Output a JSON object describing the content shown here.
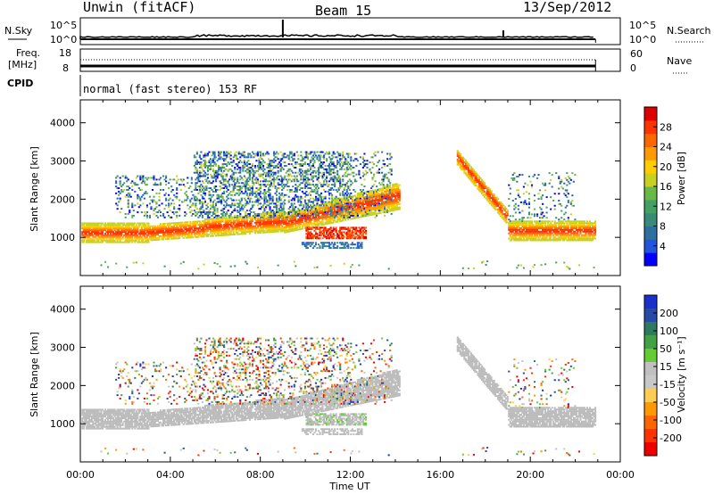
{
  "header": {
    "station": "Unwin (fitACF)",
    "beam": "Beam 15",
    "date": "13/Sep/2012"
  },
  "top_panels": {
    "nsky_label": "N.Sky",
    "nsky_ticks": [
      "10^5",
      "10^0"
    ],
    "nsearch_label": "N.Search",
    "nsearch_ticks": [
      "10^5",
      "10^0"
    ],
    "freq_label": "Freq.",
    "freq_unit": "[MHz]",
    "freq_ticks": [
      "18",
      "8"
    ],
    "nave_label": "Nave",
    "nave_ticks": [
      "60",
      "0"
    ],
    "cpid_label": "CPID",
    "cpid_text": "normal (fast stereo) 153 RF"
  },
  "chart_data": [
    {
      "type": "heatmap",
      "name": "power-panel",
      "xlabel": "Time UT",
      "ylabel": "Slant Range [km]",
      "xlim": [
        0,
        24
      ],
      "ylim": [
        0,
        4600
      ],
      "x_ticks": [
        "00:00",
        "04:00",
        "08:00",
        "12:00",
        "16:00",
        "20:00",
        "00:00"
      ],
      "y_ticks": [
        1000,
        2000,
        3000,
        4000
      ],
      "colorbar_label": "Power [dB]",
      "colorbar_ticks": [
        4,
        8,
        12,
        16,
        20,
        24,
        28
      ],
      "colorbar_colors": [
        "#0000ff",
        "#2255dd",
        "#2f6fa0",
        "#3a8a78",
        "#45a065",
        "#6ab84a",
        "#c8d020",
        "#ffcc00",
        "#ff9900",
        "#ff6600",
        "#ff3300",
        "#dd0000"
      ],
      "colorbar_range": [
        0,
        32
      ]
    },
    {
      "type": "heatmap",
      "name": "velocity-panel",
      "xlabel": "Time UT",
      "ylabel": "Slant Range [km]",
      "xlim": [
        0,
        24
      ],
      "ylim": [
        0,
        4600
      ],
      "x_ticks": [
        "00:00",
        "04:00",
        "08:00",
        "12:00",
        "16:00",
        "20:00",
        "00:00"
      ],
      "y_ticks": [
        1000,
        2000,
        3000,
        4000
      ],
      "colorbar_label": "Velocity [m s⁻¹]",
      "colorbar_ticks": [
        200,
        100,
        50,
        15,
        -15,
        -50,
        -100,
        -200
      ],
      "colorbar_colors": [
        "#1a2fcc",
        "#2a4aa8",
        "#2e7a60",
        "#44a044",
        "#66cc33",
        "#c0c0c0",
        "#c8c8c8",
        "#ffcc55",
        "#ff9900",
        "#ff6600",
        "#ff3300",
        "#ee0000"
      ],
      "ground_scatter_color": "#bbbbbb"
    }
  ]
}
